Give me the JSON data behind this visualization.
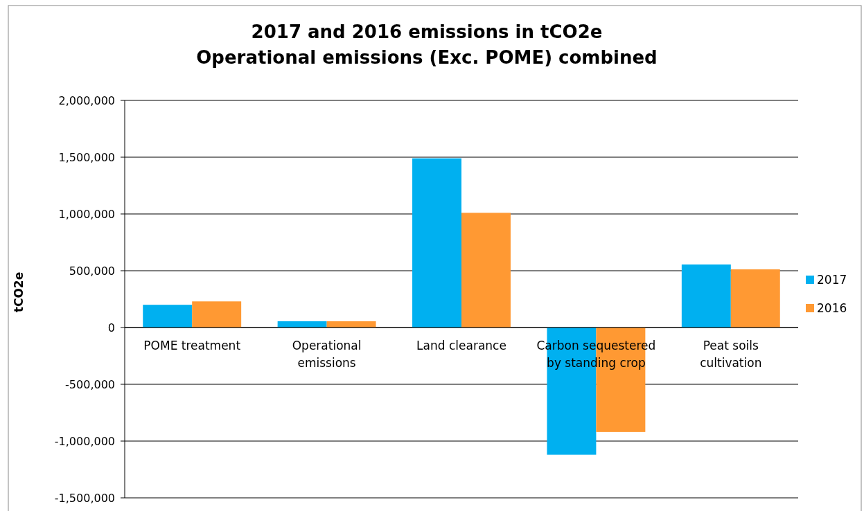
{
  "chart_data": {
    "type": "bar",
    "title": "2017 and 2016 emissions in tCO2e",
    "subtitle": "Operational emissions (Exc. POME) combined",
    "ylabel": "tCO2e",
    "categories": [
      "POME treatment",
      "Operational emissions",
      "Land clearance",
      "Carbon sequestered by standing crop",
      "Peat soils cultivation"
    ],
    "series": [
      {
        "name": "2017",
        "color": "#00b0f0",
        "values": [
          200000,
          55000,
          1490000,
          -1120000,
          555000
        ]
      },
      {
        "name": "2016",
        "color": "#ff9933",
        "values": [
          230000,
          55000,
          1010000,
          -920000,
          512000
        ]
      }
    ],
    "ylim": [
      -1500000,
      2000000
    ],
    "yticks": [
      {
        "value": -1500000,
        "label": "-1,500,000"
      },
      {
        "value": -1000000,
        "label": "-1,000,000"
      },
      {
        "value": -500000,
        "label": "-500,000"
      },
      {
        "value": 0,
        "label": "0"
      },
      {
        "value": 500000,
        "label": "500,000"
      },
      {
        "value": 1000000,
        "label": "1,000,000"
      },
      {
        "value": 1500000,
        "label": "1,500,000"
      },
      {
        "value": 2000000,
        "label": "2,000,000"
      }
    ],
    "grid": "y",
    "legend": "right"
  }
}
